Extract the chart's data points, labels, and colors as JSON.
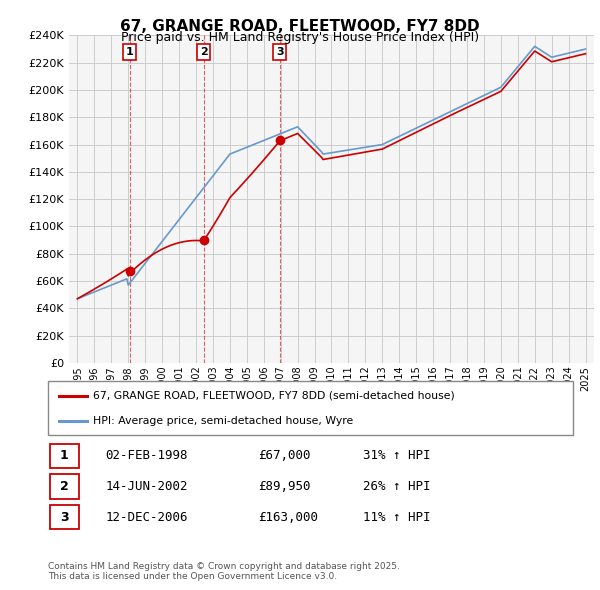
{
  "title": "67, GRANGE ROAD, FLEETWOOD, FY7 8DD",
  "subtitle": "Price paid vs. HM Land Registry's House Price Index (HPI)",
  "legend_line1": "67, GRANGE ROAD, FLEETWOOD, FY7 8DD (semi-detached house)",
  "legend_line2": "HPI: Average price, semi-detached house, Wyre",
  "footer": "Contains HM Land Registry data © Crown copyright and database right 2025.\nThis data is licensed under the Open Government Licence v3.0.",
  "sales": [
    {
      "label": "1",
      "date": "02-FEB-1998",
      "price": 67000,
      "hpi_pct": "31% ↑ HPI",
      "year": 1998.09
    },
    {
      "label": "2",
      "date": "14-JUN-2002",
      "price": 89950,
      "hpi_pct": "26% ↑ HPI",
      "year": 2002.45
    },
    {
      "label": "3",
      "date": "12-DEC-2006",
      "price": 163000,
      "hpi_pct": "11% ↑ HPI",
      "year": 2006.95
    }
  ],
  "red_color": "#cc0000",
  "blue_color": "#6699cc",
  "ylim": [
    0,
    240000
  ],
  "yticks": [
    0,
    20000,
    40000,
    60000,
    80000,
    100000,
    120000,
    140000,
    160000,
    180000,
    200000,
    220000,
    240000
  ],
  "xlim": [
    1994.5,
    2025.5
  ]
}
